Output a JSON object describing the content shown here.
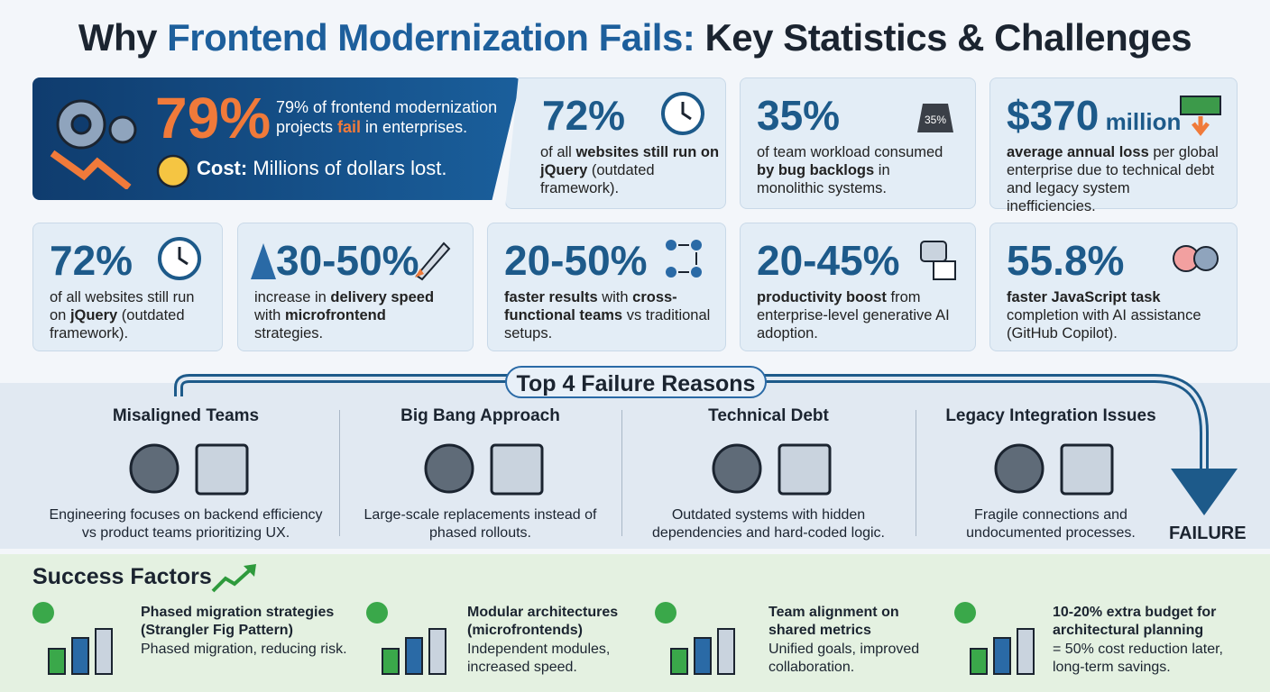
{
  "header": {
    "title": [
      {
        "text": "Why "
      },
      {
        "text": "Frontend Modernization Fails:",
        "color": "#1d5f9c"
      },
      {
        "text": " Key Statistics & Challenges"
      }
    ]
  },
  "hero": {
    "figure": "79%",
    "text": [
      {
        "text": "79% of frontend modernization projects "
      },
      {
        "text": "fail",
        "color": "#f07a3a",
        "bold": true
      },
      {
        "text": " in enterprises."
      }
    ],
    "cost": [
      {
        "text": "Cost:",
        "bold": true
      },
      {
        "text": " Millions of dollars lost."
      }
    ]
  },
  "stats": [
    {
      "figure": "72%",
      "text": [
        {
          "text": "of all "
        },
        {
          "text": "websites still run on jQuery",
          "bold": true
        },
        {
          "text": " (outdated framework)."
        }
      ]
    },
    {
      "figure": "35%",
      "icon_label": "35%",
      "text": [
        {
          "text": "of team workload consumed "
        },
        {
          "text": "by bug backlogs",
          "bold": true
        },
        {
          "text": " in monolithic systems."
        }
      ]
    },
    {
      "figure": "$370",
      "unit": " million",
      "text": [
        {
          "text": "average annual loss",
          "bold": true
        },
        {
          "text": " per global enterprise due to technical debt and legacy system inefficiencies."
        }
      ]
    },
    {
      "figure": "72%",
      "text": [
        {
          "text": "of all websites still run on "
        },
        {
          "text": "jQuery",
          "bold": true
        },
        {
          "text": " (outdated framework)."
        }
      ]
    },
    {
      "figure": "30-50%",
      "text": [
        {
          "text": "increase in "
        },
        {
          "text": "delivery speed",
          "bold": true
        },
        {
          "text": " with "
        },
        {
          "text": "microfrontend",
          "bold": true
        },
        {
          "text": " strategies."
        }
      ]
    },
    {
      "figure": "20-50%",
      "text": [
        {
          "text": "faster results",
          "bold": true
        },
        {
          "text": " with "
        },
        {
          "text": "cross-functional teams",
          "bold": true
        },
        {
          "text": " vs traditional setups."
        }
      ]
    },
    {
      "figure": "20-45%",
      "text": [
        {
          "text": "productivity boost",
          "bold": true
        },
        {
          "text": " from enterprise-level generative AI adoption."
        }
      ]
    },
    {
      "figure": "55.8%",
      "text": [
        {
          "text": "faster JavaScript task",
          "bold": true
        },
        {
          "text": " completion with AI assistance (GitHub Copilot)."
        }
      ]
    }
  ],
  "failures": {
    "heading": "Top 4 Failure Reasons",
    "outcome": "FAILURE",
    "reasons": [
      {
        "title": "Misaligned Teams",
        "text": "Engineering focuses on backend efficiency vs product teams prioritizing UX."
      },
      {
        "title": "Big Bang Approach",
        "text": "Large-scale replacements instead of phased rollouts."
      },
      {
        "title": "Technical Debt",
        "text": "Outdated systems with hidden dependencies and hard-coded logic."
      },
      {
        "title": "Legacy Integration Issues",
        "text": "Fragile connections and undocumented processes."
      }
    ]
  },
  "success": {
    "heading": "Success Factors",
    "items": [
      {
        "title": "Phased migration strategies (Strangler Fig Pattern)",
        "text": "Phased migration, reducing risk."
      },
      {
        "title": "Modular architectures (microfrontends)",
        "text": "Independent modules, increased speed."
      },
      {
        "title": "Team alignment on shared metrics",
        "text": "Unified goals, improved collaboration."
      },
      {
        "title": "10-20% extra budget for architectural planning",
        "text": "= 50% cost reduction later, long-term savings."
      }
    ]
  }
}
